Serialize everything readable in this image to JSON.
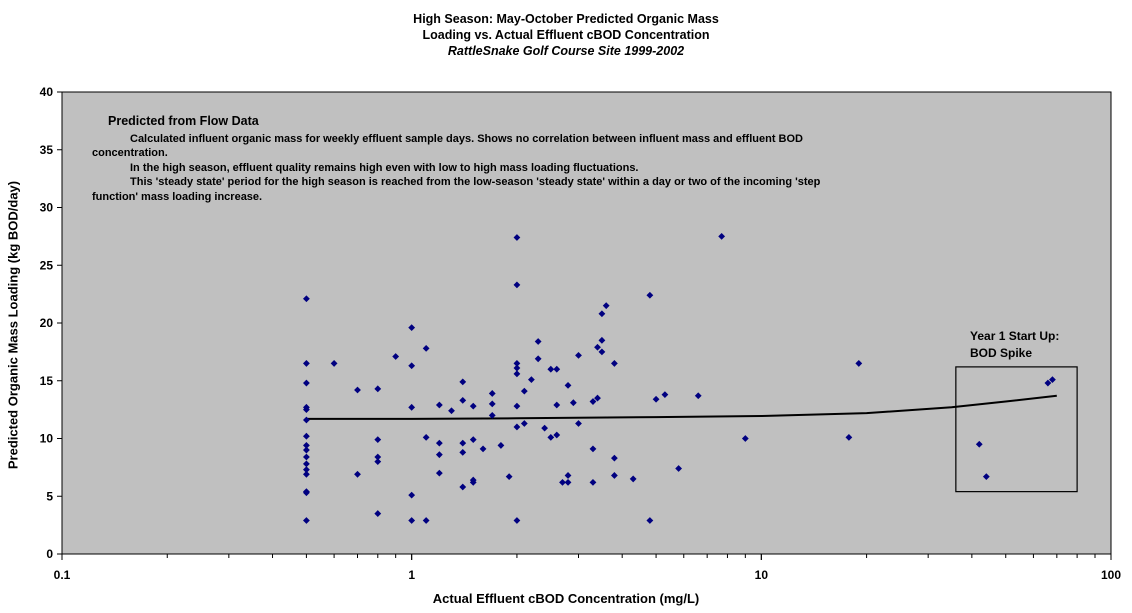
{
  "chart_data": {
    "type": "scatter",
    "title": "High Season: May-October Predicted Organic Mass",
    "title_line2": "Loading vs. Actual Effluent cBOD Concentration",
    "subtitle": "RattleSnake Golf Course Site 1999-2002",
    "xlabel": "Actual Effluent cBOD Concentration (mg/L)",
    "ylabel": "Predicted Organic Mass Loading (kg BOD/day)",
    "xscale": "log",
    "xlim": [
      0.1,
      100
    ],
    "ylim": [
      0,
      40
    ],
    "x_ticks": [
      "0.1",
      "1",
      "10",
      "100"
    ],
    "y_ticks": [
      "0",
      "5",
      "10",
      "15",
      "20",
      "25",
      "30",
      "35",
      "40"
    ],
    "grid": false,
    "plot_background": "#c0c0c0",
    "marker_color": "#000080",
    "trendline_color": "#000000",
    "trendline": [
      [
        0.5,
        11.7
      ],
      [
        1,
        11.7
      ],
      [
        2,
        11.75
      ],
      [
        5,
        11.85
      ],
      [
        10,
        11.95
      ],
      [
        20,
        12.2
      ],
      [
        35,
        12.7
      ],
      [
        50,
        13.2
      ],
      [
        70,
        13.7
      ]
    ],
    "points": [
      [
        0.5,
        22.1
      ],
      [
        0.5,
        16.5
      ],
      [
        0.5,
        14.8
      ],
      [
        0.5,
        12.7
      ],
      [
        0.5,
        12.5
      ],
      [
        0.5,
        11.6
      ],
      [
        0.5,
        10.2
      ],
      [
        0.5,
        9.4
      ],
      [
        0.5,
        9.0
      ],
      [
        0.5,
        8.4
      ],
      [
        0.5,
        7.8
      ],
      [
        0.5,
        7.3
      ],
      [
        0.5,
        6.9
      ],
      [
        0.5,
        5.4
      ],
      [
        0.5,
        5.3
      ],
      [
        0.5,
        2.9
      ],
      [
        0.6,
        16.5
      ],
      [
        0.7,
        14.2
      ],
      [
        0.7,
        6.9
      ],
      [
        0.8,
        14.3
      ],
      [
        0.8,
        9.9
      ],
      [
        0.8,
        8.4
      ],
      [
        0.8,
        8.0
      ],
      [
        0.8,
        3.5
      ],
      [
        0.9,
        17.1
      ],
      [
        1.0,
        19.6
      ],
      [
        1.0,
        16.3
      ],
      [
        1.0,
        12.7
      ],
      [
        1.0,
        5.1
      ],
      [
        1.0,
        2.9
      ],
      [
        1.1,
        17.8
      ],
      [
        1.1,
        10.1
      ],
      [
        1.1,
        2.9
      ],
      [
        1.2,
        12.9
      ],
      [
        1.2,
        9.6
      ],
      [
        1.2,
        8.6
      ],
      [
        1.2,
        7.0
      ],
      [
        1.3,
        12.4
      ],
      [
        1.4,
        14.9
      ],
      [
        1.4,
        13.3
      ],
      [
        1.4,
        9.6
      ],
      [
        1.4,
        8.8
      ],
      [
        1.4,
        5.8
      ],
      [
        1.5,
        12.8
      ],
      [
        1.5,
        9.9
      ],
      [
        1.5,
        6.4
      ],
      [
        1.5,
        6.2
      ],
      [
        1.6,
        9.1
      ],
      [
        1.7,
        13.9
      ],
      [
        1.7,
        13.0
      ],
      [
        1.7,
        12.0
      ],
      [
        1.8,
        9.4
      ],
      [
        1.9,
        6.7
      ],
      [
        2.0,
        27.4
      ],
      [
        2.0,
        23.3
      ],
      [
        2.0,
        16.5
      ],
      [
        2.0,
        16.1
      ],
      [
        2.0,
        15.6
      ],
      [
        2.0,
        12.8
      ],
      [
        2.0,
        11.0
      ],
      [
        2.0,
        2.9
      ],
      [
        2.1,
        14.1
      ],
      [
        2.1,
        11.3
      ],
      [
        2.2,
        15.1
      ],
      [
        2.3,
        18.4
      ],
      [
        2.3,
        16.9
      ],
      [
        2.4,
        10.9
      ],
      [
        2.5,
        16.0
      ],
      [
        2.5,
        10.1
      ],
      [
        2.6,
        16.0
      ],
      [
        2.6,
        12.9
      ],
      [
        2.6,
        10.3
      ],
      [
        2.7,
        6.2
      ],
      [
        2.8,
        14.6
      ],
      [
        2.8,
        6.8
      ],
      [
        2.8,
        6.2
      ],
      [
        2.9,
        13.1
      ],
      [
        3.0,
        17.2
      ],
      [
        3.0,
        11.3
      ],
      [
        3.3,
        13.2
      ],
      [
        3.3,
        9.1
      ],
      [
        3.3,
        6.2
      ],
      [
        3.4,
        17.9
      ],
      [
        3.4,
        13.5
      ],
      [
        3.5,
        17.5
      ],
      [
        3.5,
        20.8
      ],
      [
        3.5,
        18.5
      ],
      [
        3.6,
        21.5
      ],
      [
        3.8,
        16.5
      ],
      [
        3.8,
        8.3
      ],
      [
        3.8,
        6.8
      ],
      [
        4.3,
        6.5
      ],
      [
        4.8,
        22.4
      ],
      [
        4.8,
        2.9
      ],
      [
        5.0,
        13.4
      ],
      [
        5.3,
        13.8
      ],
      [
        5.8,
        7.4
      ],
      [
        6.6,
        13.7
      ],
      [
        7.7,
        27.5
      ],
      [
        9.0,
        10.0
      ],
      [
        17.8,
        10.1
      ],
      [
        19.0,
        16.5
      ],
      [
        42.0,
        9.5
      ],
      [
        44.0,
        6.7
      ],
      [
        66.0,
        14.8
      ],
      [
        68.0,
        15.1
      ]
    ]
  },
  "annotation": {
    "heading": "Predicted from Flow Data",
    "para1": "Calculated influent organic mass for weekly effluent sample days. Shows no correlation between influent mass and effluent BOD concentration.",
    "para2": "In the high season, effluent quality remains high even with low to high  mass loading fluctuations.",
    "para3": "This 'steady state'  period for the high season is reached from the low-season 'steady state' within a day or two of the incoming 'step function' mass loading increase."
  },
  "callout": {
    "line1": "Year 1 Start Up:",
    "line2": "BOD Spike",
    "box_x_range": [
      36,
      80
    ],
    "box_y_range": [
      5.4,
      16.2
    ]
  }
}
